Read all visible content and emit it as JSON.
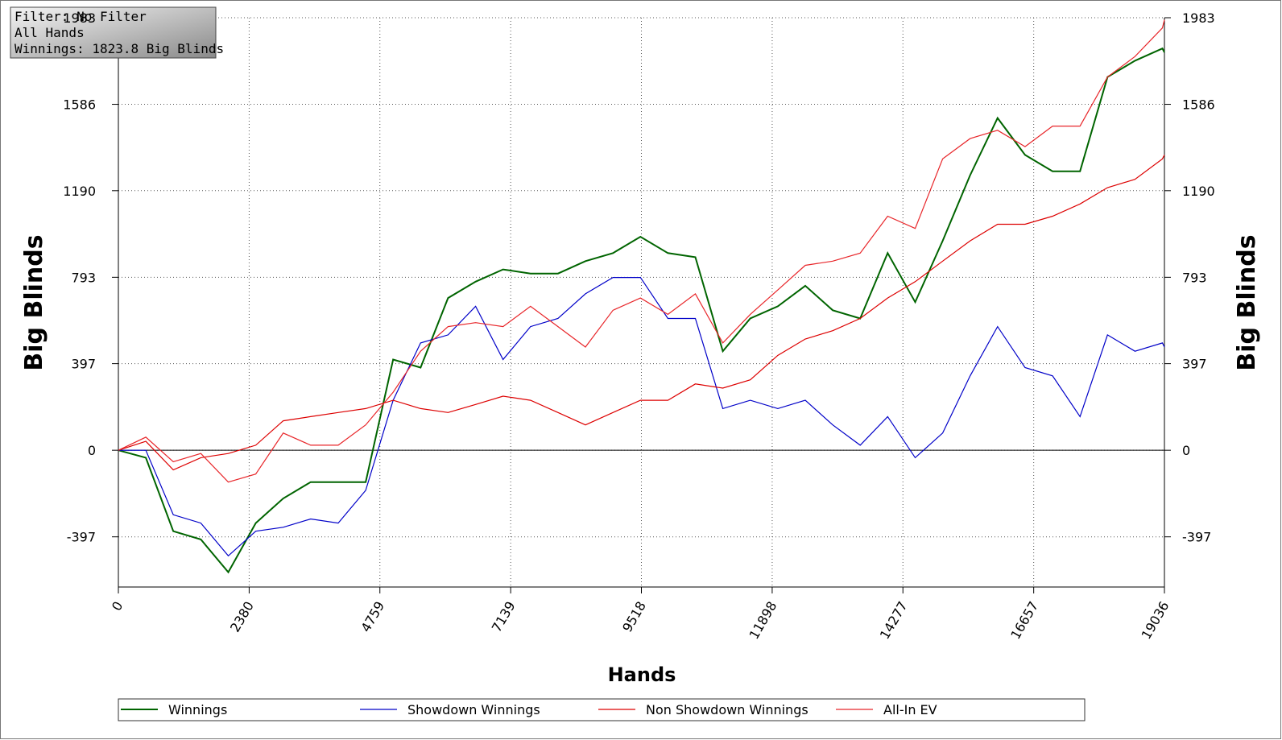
{
  "info": [
    "Filter: No Filter",
    "All Hands",
    "Winnings: 1823.8 Big Blinds"
  ],
  "chart_data": {
    "type": "line",
    "x_label": "Hands",
    "y_label": "Big Blinds",
    "xlim": [
      0,
      19036
    ],
    "ylim": [
      -627,
      1983
    ],
    "xticks": [
      0,
      2380,
      4759,
      7139,
      9518,
      11898,
      14277,
      16657,
      19036
    ],
    "yticks": [
      -397,
      0,
      397,
      793,
      1190,
      1586,
      1983
    ],
    "grid": true,
    "legend": "bottom",
    "x": [
      0,
      500,
      1000,
      1500,
      2000,
      2500,
      3000,
      3500,
      4000,
      4500,
      5000,
      5500,
      6000,
      6500,
      7000,
      7500,
      8000,
      8500,
      9000,
      9500,
      10000,
      10500,
      11000,
      11500,
      12000,
      12500,
      13000,
      13500,
      14000,
      14500,
      15000,
      15500,
      16000,
      16500,
      17000,
      17500,
      18000,
      18500,
      19000,
      19036
    ],
    "series": [
      {
        "name": "Winnings",
        "color": "#006400",
        "values": [
          0,
          -34,
          -371,
          -409,
          -559,
          -334,
          -221,
          -146,
          -146,
          -146,
          416,
          379,
          698,
          773,
          829,
          810,
          810,
          867,
          904,
          979,
          904,
          885,
          454,
          604,
          660,
          754,
          642,
          604,
          904,
          679,
          960,
          1261,
          1523,
          1354,
          1279,
          1279,
          1711,
          1786,
          1842,
          1823.8
        ]
      },
      {
        "name": "Showdown Winnings",
        "color": "#0000c8",
        "values": [
          0,
          0,
          -296,
          -334,
          -484,
          -371,
          -353,
          -315,
          -334,
          -184,
          229,
          492,
          529,
          660,
          416,
          567,
          604,
          717,
          792,
          792,
          604,
          604,
          191,
          229,
          191,
          229,
          116,
          23,
          154,
          -34,
          79,
          341,
          567,
          379,
          341,
          154,
          529,
          454,
          492,
          473
        ]
      },
      {
        "name": "Non Showdown Winnings",
        "color": "#dd0000",
        "values": [
          0,
          41,
          -90,
          -34,
          -15,
          23,
          135,
          154,
          173,
          191,
          229,
          191,
          173,
          210,
          248,
          229,
          173,
          116,
          173,
          229,
          229,
          304,
          285,
          323,
          435,
          510,
          548,
          604,
          698,
          773,
          867,
          960,
          1036,
          1036,
          1073,
          1129,
          1204,
          1242,
          1336,
          1354
        ]
      },
      {
        "name": "All-In EV",
        "color": "#e8262a",
        "values": [
          0,
          60,
          -53,
          -15,
          -146,
          -109,
          79,
          23,
          23,
          116,
          266,
          454,
          567,
          585,
          567,
          660,
          567,
          473,
          642,
          698,
          623,
          717,
          492,
          623,
          735,
          848,
          867,
          904,
          1073,
          1017,
          1336,
          1429,
          1467,
          1392,
          1486,
          1486,
          1711,
          1805,
          1936,
          1973
        ]
      }
    ]
  }
}
